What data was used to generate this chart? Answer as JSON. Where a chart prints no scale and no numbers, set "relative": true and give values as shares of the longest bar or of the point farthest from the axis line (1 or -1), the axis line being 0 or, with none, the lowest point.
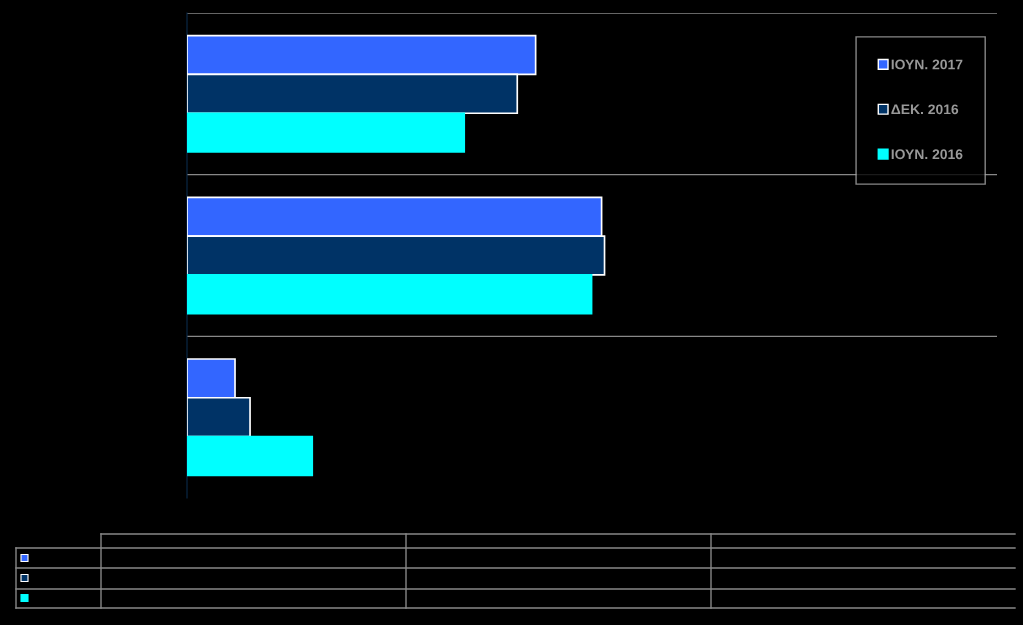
{
  "chart_data": {
    "type": "bar",
    "orientation": "horizontal",
    "relative": true,
    "categories": [
      null,
      null,
      null
    ],
    "series": [
      {
        "name": "ΙΟΥΝ. 2017",
        "color": "#3366ff",
        "values": [
          0.835,
          0.993,
          0.115
        ]
      },
      {
        "name": "ΔΕΚ. 2016",
        "color": "#003366",
        "values": [
          0.791,
          1.0,
          0.151
        ]
      },
      {
        "name": "ΙΟΥΝ. 2016",
        "color": "#00ffff",
        "values": [
          0.664,
          0.969,
          0.3
        ]
      }
    ],
    "grid": "y",
    "legend": "top right"
  }
}
